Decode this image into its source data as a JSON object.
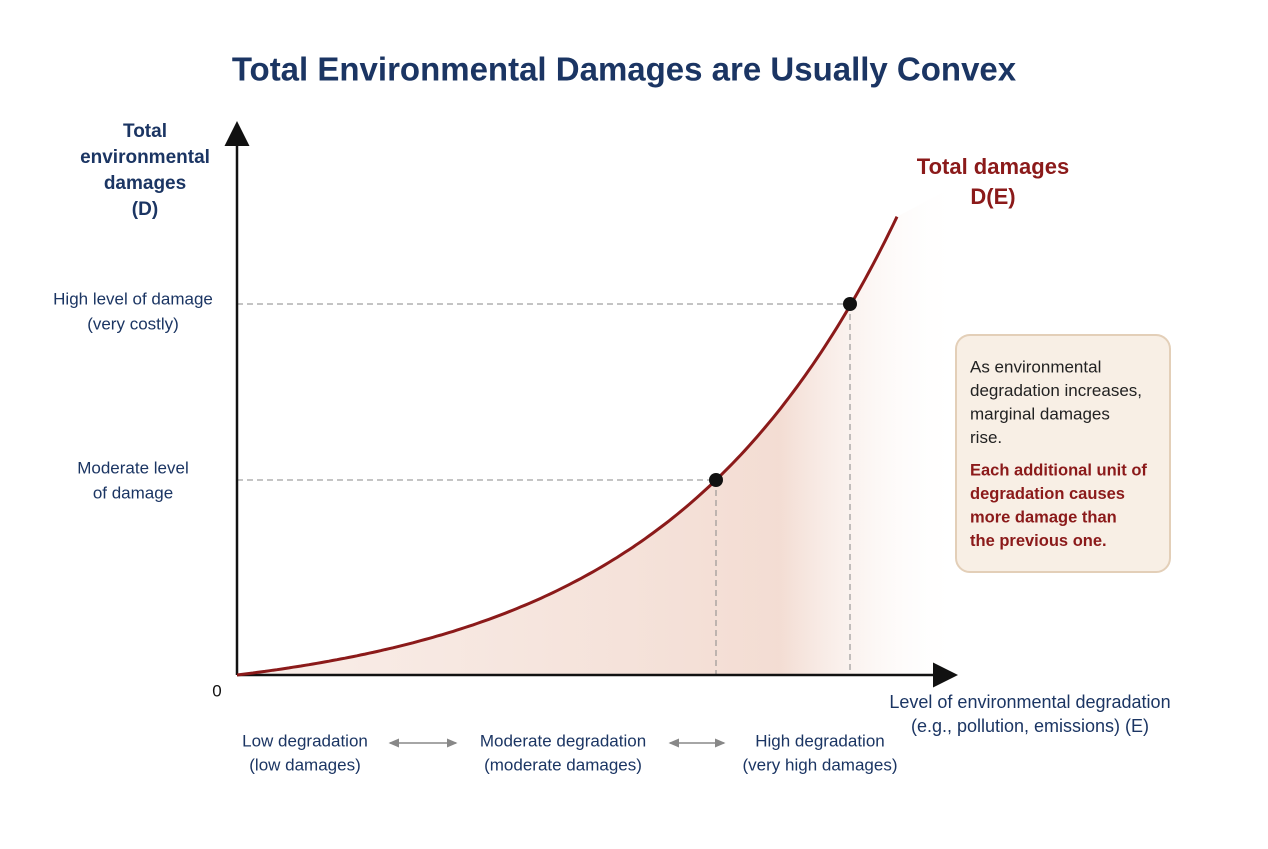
{
  "title": "Total Environmental Damages are Usually Convex",
  "y_axis": {
    "label": [
      "Total",
      "environmental",
      "damages",
      "(D)"
    ],
    "levels": [
      {
        "lines": [
          "High level of damage",
          "(very costly)"
        ]
      },
      {
        "lines": [
          "Moderate level",
          "of damage"
        ]
      }
    ],
    "origin": "0"
  },
  "x_axis": {
    "label": [
      "Level of environmental degradation",
      "(e.g., pollution, emissions) (E)"
    ],
    "ranges": [
      {
        "lines": [
          "Low degradation",
          "(low damages)"
        ]
      },
      {
        "lines": [
          "Moderate degradation",
          "(moderate damages)"
        ]
      },
      {
        "lines": [
          "High degradation",
          "(very high damages)"
        ]
      }
    ]
  },
  "curve": {
    "label": [
      "Total damages",
      "D(E)"
    ]
  },
  "note": {
    "text": [
      "As environmental",
      "degradation increases,",
      "marginal damages",
      "rise."
    ],
    "emphasis": [
      "Each additional unit of",
      "degradation causes",
      "more damage than",
      "the previous one."
    ]
  }
}
